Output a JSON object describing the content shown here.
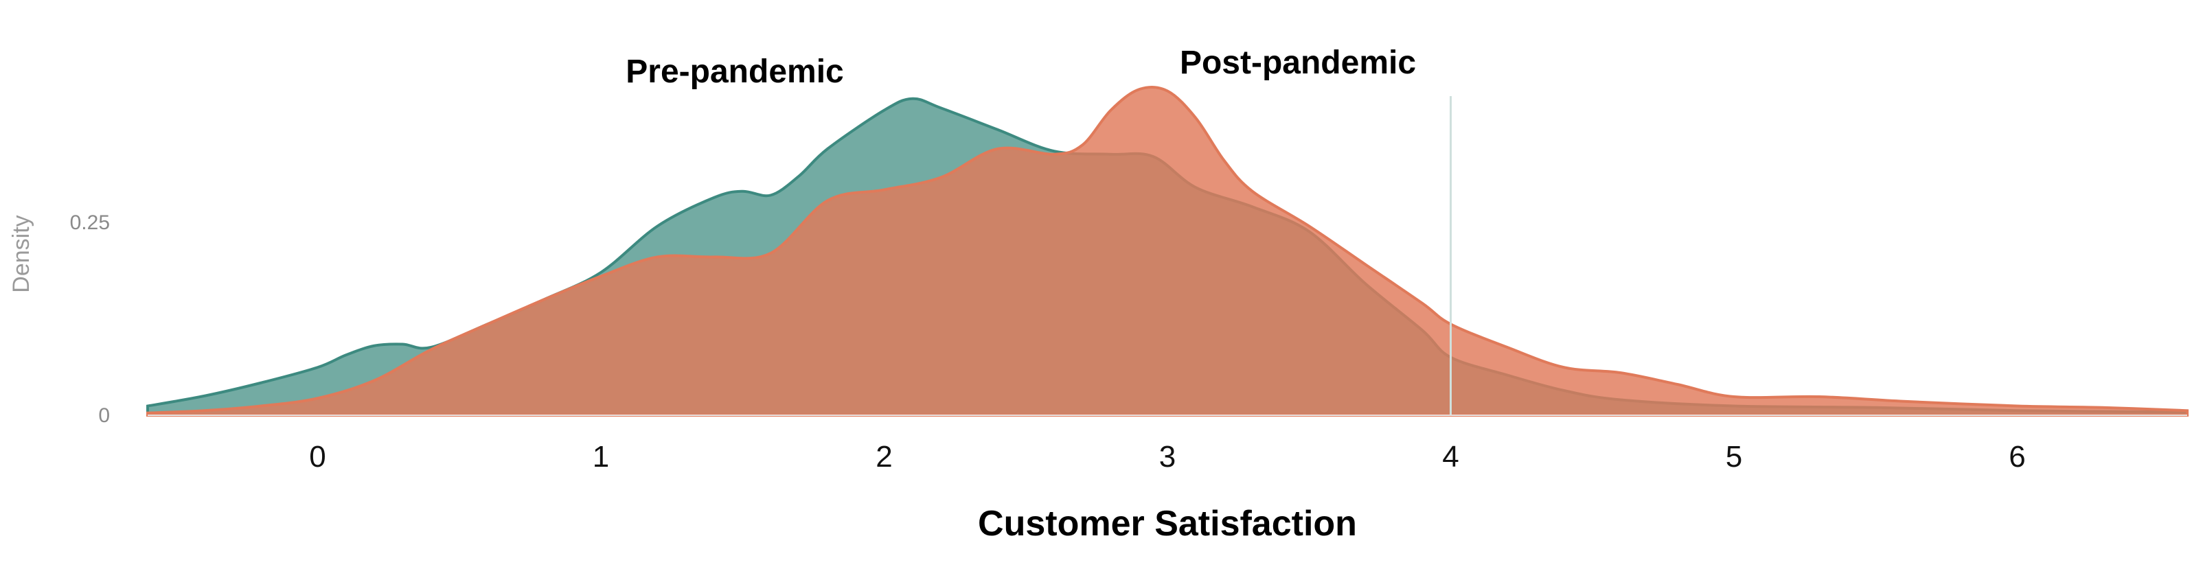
{
  "chart_data": {
    "type": "area",
    "xlabel": "Customer Satisfaction",
    "ylabel": "Density",
    "x_ticks": [
      "0",
      "1",
      "2",
      "3",
      "4",
      "5",
      "6"
    ],
    "y_ticks": [
      "0",
      "0.25"
    ],
    "xlim": [
      -0.6,
      6.6
    ],
    "ylim": [
      0,
      0.44
    ],
    "reference_line_x": 4,
    "colors": {
      "pre": "#3d8a80",
      "post": "#e07a5a",
      "reference_line": "#cfe0dd"
    },
    "series": [
      {
        "name": "Pre-pandemic",
        "x": [
          -0.6,
          -0.4,
          -0.2,
          0,
          0.1,
          0.2,
          0.3,
          0.4,
          0.6,
          0.8,
          1.0,
          1.2,
          1.4,
          1.5,
          1.6,
          1.7,
          1.8,
          2.0,
          2.1,
          2.2,
          2.4,
          2.6,
          2.8,
          2.95,
          3.1,
          3.3,
          3.5,
          3.7,
          3.9,
          4.0,
          4.2,
          4.4,
          4.6,
          5.0,
          5.5,
          6.0,
          6.6
        ],
        "y": [
          0.012,
          0.025,
          0.042,
          0.062,
          0.078,
          0.09,
          0.092,
          0.088,
          0.118,
          0.15,
          0.185,
          0.245,
          0.282,
          0.29,
          0.285,
          0.31,
          0.345,
          0.395,
          0.41,
          0.398,
          0.37,
          0.342,
          0.338,
          0.335,
          0.295,
          0.27,
          0.238,
          0.17,
          0.11,
          0.075,
          0.052,
          0.032,
          0.02,
          0.012,
          0.01,
          0.006,
          0.004
        ]
      },
      {
        "name": "Post-pandemic",
        "x": [
          -0.6,
          -0.4,
          -0.2,
          0,
          0.2,
          0.4,
          0.6,
          0.8,
          1.0,
          1.2,
          1.4,
          1.6,
          1.8,
          2.0,
          2.2,
          2.4,
          2.6,
          2.7,
          2.8,
          2.9,
          3.0,
          3.1,
          3.2,
          3.3,
          3.5,
          3.7,
          3.9,
          4.0,
          4.2,
          4.4,
          4.6,
          4.8,
          5.0,
          5.3,
          5.6,
          6.0,
          6.3,
          6.6
        ],
        "y": [
          0.003,
          0.006,
          0.012,
          0.022,
          0.045,
          0.085,
          0.118,
          0.15,
          0.18,
          0.205,
          0.205,
          0.21,
          0.278,
          0.292,
          0.308,
          0.345,
          0.338,
          0.35,
          0.395,
          0.422,
          0.42,
          0.385,
          0.33,
          0.29,
          0.245,
          0.195,
          0.145,
          0.118,
          0.088,
          0.062,
          0.055,
          0.04,
          0.024,
          0.024,
          0.018,
          0.012,
          0.01,
          0.006
        ]
      }
    ]
  }
}
